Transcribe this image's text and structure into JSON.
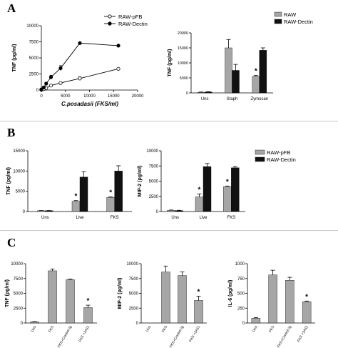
{
  "panels": {
    "A": "A",
    "B": "B",
    "C": "C"
  },
  "colors": {
    "gray_bar": "#a6a6a6",
    "black_bar": "#111111",
    "axis": "#000000"
  },
  "chart_data": [
    {
      "id": "A1",
      "type": "line",
      "xlabel": "C.posadasii (FKS/ml)",
      "ylabel": "TNF (pg/ml)",
      "xlim": [
        0,
        20000
      ],
      "ylim": [
        0,
        10000
      ],
      "xticks": [
        "0",
        "5000",
        "10000",
        "15000",
        "20000"
      ],
      "yticks": [
        "0",
        "2500",
        "5000",
        "7500",
        "10000"
      ],
      "series": [
        {
          "name": "RAW-pFB",
          "marker": "open",
          "points": [
            [
              0,
              50
            ],
            [
              500,
              150
            ],
            [
              1000,
              300
            ],
            [
              2000,
              700
            ],
            [
              4000,
              1100
            ],
            [
              8000,
              1800
            ],
            [
              16000,
              3300
            ]
          ],
          "err": [
            0,
            50,
            60,
            80,
            150,
            250,
            120
          ]
        },
        {
          "name": "RAW-Dectin",
          "marker": "filled",
          "points": [
            [
              0,
              100
            ],
            [
              500,
              400
            ],
            [
              1000,
              1000
            ],
            [
              2000,
              2000
            ],
            [
              4000,
              3400
            ],
            [
              8000,
              7300
            ],
            [
              16000,
              6900
            ]
          ],
          "err": [
            0,
            150,
            200,
            300,
            400,
            150,
            100
          ]
        }
      ]
    },
    {
      "id": "A2",
      "type": "bar",
      "ylabel": "TNF (pg/ml)",
      "ylim": [
        0,
        20000
      ],
      "yticks": [
        "0",
        "5000",
        "10000",
        "15000",
        "20000"
      ],
      "categories": [
        "Uns",
        "Staph",
        "Zymosan"
      ],
      "series": [
        {
          "name": "RAW",
          "color": "#a6a6a6",
          "values": [
            200,
            15000,
            5500
          ],
          "err": [
            100,
            2800,
            300
          ]
        },
        {
          "name": "RAW-Dectin",
          "color": "#111111",
          "values": [
            300,
            7500,
            14200
          ],
          "err": [
            100,
            2000,
            800
          ]
        }
      ],
      "stars": [
        {
          "category": 2,
          "series": 0,
          "label": "*"
        }
      ]
    },
    {
      "id": "B1",
      "type": "bar",
      "ylabel": "TNF (pg/ml)",
      "ylim": [
        0,
        15000
      ],
      "yticks": [
        "0",
        "5000",
        "10000",
        "15000"
      ],
      "categories": [
        "Uns",
        "Live",
        "FKS"
      ],
      "series": [
        {
          "name": "RAW-pFB",
          "color": "#a6a6a6",
          "values": [
            200,
            2500,
            3500
          ],
          "err": [
            50,
            200,
            100
          ]
        },
        {
          "name": "RAW-Dectin",
          "color": "#111111",
          "values": [
            200,
            8500,
            10000
          ],
          "err": [
            50,
            1300,
            1300
          ]
        }
      ],
      "stars": [
        {
          "category": 1,
          "series": 0,
          "label": "*"
        },
        {
          "category": 2,
          "series": 0,
          "label": "*"
        }
      ]
    },
    {
      "id": "B2",
      "type": "bar",
      "ylabel": "MIP-2 (pg/ml)",
      "ylim": [
        0,
        10000
      ],
      "yticks": [
        "0",
        "2500",
        "5000",
        "7500",
        "10000"
      ],
      "categories": [
        "Uns",
        "Live",
        "FKS"
      ],
      "series": [
        {
          "name": "RAW-pFB",
          "color": "#a6a6a6",
          "values": [
            200,
            2400,
            4100
          ],
          "err": [
            50,
            500,
            100
          ]
        },
        {
          "name": "RAW-Dectin",
          "color": "#111111",
          "values": [
            150,
            7400,
            7200
          ],
          "err": [
            50,
            500,
            200
          ]
        }
      ],
      "stars": [
        {
          "category": 1,
          "series": 0,
          "label": "*"
        },
        {
          "category": 2,
          "series": 0,
          "label": "*"
        }
      ],
      "legend": "right"
    },
    {
      "id": "C1",
      "type": "bar",
      "ylabel": "TNF (pg/ml)",
      "ylim": [
        0,
        10000
      ],
      "yticks": [
        "0",
        "2500",
        "5000",
        "7500",
        "10000"
      ],
      "categories": [
        "Uns",
        "FKS",
        "FKS+Control Ig",
        "FKS +2A11"
      ],
      "values": [
        200,
        8800,
        7300,
        2600
      ],
      "err": [
        50,
        300,
        100,
        400
      ],
      "stars": [
        {
          "category": 3,
          "label": "*"
        }
      ]
    },
    {
      "id": "C2",
      "type": "bar",
      "ylabel": "MIP-2 (pg/ml)",
      "ylim": [
        0,
        10000
      ],
      "yticks": [
        "0",
        "2500",
        "5000",
        "7500",
        "10000"
      ],
      "categories": [
        "Uns",
        "FKS",
        "FKS+Control Ig",
        "FKS +2A11"
      ],
      "values": [
        0,
        8600,
        8000,
        3800
      ],
      "err": [
        0,
        1000,
        600,
        700
      ],
      "stars": [
        {
          "category": 3,
          "label": "*"
        }
      ]
    },
    {
      "id": "C3",
      "type": "bar",
      "ylabel": "IL-6 (pg/ml)",
      "ylim": [
        0,
        1000
      ],
      "yticks": [
        "0",
        "250",
        "500",
        "750",
        "1000"
      ],
      "categories": [
        "Uns",
        "FKS",
        "FKS+Control Ig",
        "FKS +2A11"
      ],
      "values": [
        80,
        810,
        720,
        360
      ],
      "err": [
        10,
        80,
        50,
        10
      ],
      "stars": [
        {
          "category": 3,
          "label": "*"
        }
      ]
    }
  ]
}
